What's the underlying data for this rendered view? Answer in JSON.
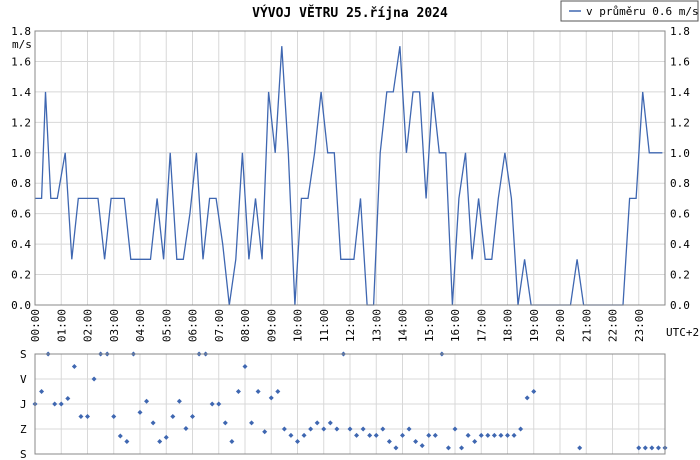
{
  "chart_data": [
    {
      "type": "line",
      "title": "VÝVOJ VĚTRU  25.října 2024",
      "legend": "v průměru 0.6 m/s",
      "legend_position": "top-right",
      "y_unit": "m/s",
      "x_unit": "UTC+2",
      "ylim": [
        0,
        1.8
      ],
      "y_ticks": [
        "0.0",
        "0.2",
        "0.4",
        "0.6",
        "0.8",
        "1.0",
        "1.2",
        "1.4",
        "1.6",
        "1.8"
      ],
      "x_ticks": [
        "00:00",
        "01:00",
        "02:00",
        "03:00",
        "04:00",
        "05:00",
        "06:00",
        "07:00",
        "08:00",
        "09:00",
        "10:00",
        "11:00",
        "12:00",
        "13:00",
        "14:00",
        "15:00",
        "16:00",
        "17:00",
        "18:00",
        "19:00",
        "20:00",
        "21:00",
        "22:00",
        "23:00"
      ],
      "xlim_hours": [
        0,
        24
      ],
      "grid": true,
      "line_color": "#3f67b1",
      "series": [
        {
          "x": [
            0.0,
            0.25,
            0.4,
            0.6,
            0.85,
            1.15,
            1.4,
            1.65,
            1.9,
            2.15,
            2.4,
            2.65,
            2.9,
            3.15,
            3.4,
            3.65,
            3.9,
            4.15,
            4.4,
            4.65,
            4.9,
            5.15,
            5.4,
            5.65,
            5.9,
            6.15,
            6.4,
            6.65,
            6.9,
            7.15,
            7.4,
            7.65,
            7.9,
            8.15,
            8.4,
            8.65,
            8.9,
            9.15,
            9.4,
            9.65,
            9.9,
            10.15,
            10.4,
            10.65,
            10.9,
            11.15,
            11.4,
            11.65,
            11.9,
            12.15,
            12.4,
            12.65,
            12.9,
            13.15,
            13.4,
            13.65,
            13.9,
            14.15,
            14.4,
            14.65,
            14.9,
            15.15,
            15.4,
            15.65,
            15.9,
            16.15,
            16.4,
            16.65,
            16.9,
            17.15,
            17.4,
            17.65,
            17.9,
            18.15,
            18.4,
            18.65,
            18.9,
            19.15,
            19.4,
            20.4,
            20.65,
            20.9,
            21.15,
            21.4,
            21.65,
            21.9,
            22.15,
            22.4,
            22.65,
            22.9,
            23.15,
            23.4,
            23.65,
            23.9
          ],
          "y": [
            0.7,
            0.7,
            1.4,
            0.7,
            0.7,
            1.0,
            0.3,
            0.7,
            0.7,
            0.7,
            0.7,
            0.3,
            0.7,
            0.7,
            0.7,
            0.3,
            0.3,
            0.3,
            0.3,
            0.7,
            0.3,
            1.0,
            0.3,
            0.3,
            0.6,
            1.0,
            0.3,
            0.7,
            0.7,
            0.4,
            0.0,
            0.3,
            1.0,
            0.3,
            0.7,
            0.3,
            1.4,
            1.0,
            1.7,
            1.0,
            0.0,
            0.7,
            0.7,
            1.0,
            1.4,
            1.0,
            1.0,
            0.3,
            0.3,
            0.3,
            0.7,
            0.0,
            0.0,
            1.0,
            1.4,
            1.4,
            1.7,
            1.0,
            1.4,
            1.4,
            0.7,
            1.4,
            1.0,
            1.0,
            0.0,
            0.7,
            1.0,
            0.3,
            0.7,
            0.3,
            0.3,
            0.7,
            1.0,
            0.7,
            0.0,
            0.3,
            0.0,
            0.0,
            0.0,
            0.0,
            0.3,
            0.0,
            0.0,
            0.0,
            0.0,
            0.0,
            0.0,
            0.0,
            0.7,
            0.7,
            1.4,
            1.0,
            1.0,
            1.0
          ]
        }
      ]
    },
    {
      "type": "scatter",
      "y_categories": [
        "S",
        "V",
        "J",
        "Z",
        "S"
      ],
      "xlim_hours": [
        0,
        24
      ],
      "grid": true,
      "point_color": "#3f67b1",
      "series": [
        {
          "x": [
            0.0,
            0.25,
            0.5,
            0.75,
            1.0,
            1.25,
            1.5,
            1.75,
            2.0,
            2.25,
            2.5,
            2.75,
            3.0,
            3.25,
            3.5,
            3.75,
            4.0,
            4.25,
            4.5,
            4.75,
            5.0,
            5.25,
            5.5,
            5.75,
            6.0,
            6.25,
            6.5,
            6.75,
            7.0,
            7.25,
            7.5,
            7.75,
            8.0,
            8.25,
            8.5,
            8.75,
            9.0,
            9.25,
            9.5,
            9.75,
            10.0,
            10.25,
            10.5,
            10.75,
            11.0,
            11.25,
            11.5,
            11.75,
            12.0,
            12.25,
            12.5,
            12.75,
            13.0,
            13.25,
            13.5,
            13.75,
            14.0,
            14.25,
            14.5,
            14.75,
            15.0,
            15.25,
            15.5,
            15.75,
            16.0,
            16.25,
            16.5,
            16.75,
            17.0,
            17.25,
            17.5,
            17.75,
            18.0,
            18.25,
            18.5,
            18.75,
            19.0,
            20.75,
            23.0,
            23.25,
            23.5,
            23.75,
            24.0
          ],
          "dir_deg": [
            180,
            225,
            360,
            180,
            180,
            200,
            315,
            135,
            135,
            270,
            360,
            360,
            135,
            65,
            45,
            360,
            150,
            190,
            112,
            45,
            60,
            135,
            190,
            92,
            135,
            360,
            360,
            180,
            180,
            112,
            45,
            225,
            315,
            112,
            225,
            80,
            202,
            225,
            90,
            67,
            45,
            67,
            90,
            112,
            90,
            112,
            90,
            360,
            90,
            67,
            90,
            67,
            67,
            90,
            45,
            22,
            67,
            90,
            45,
            30,
            67,
            67,
            360,
            22,
            90,
            22,
            67,
            45,
            67,
            67,
            67,
            67,
            67,
            67,
            90,
            202,
            225,
            22,
            22,
            22,
            22,
            22,
            22
          ]
        }
      ]
    }
  ]
}
